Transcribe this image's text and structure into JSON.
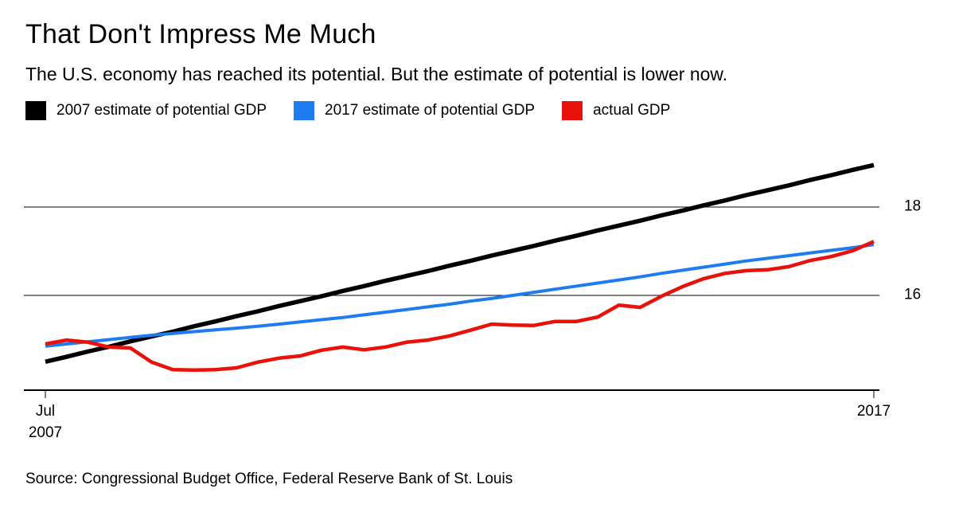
{
  "header": {
    "title": "That Don't Impress Me Much",
    "subtitle": "The U.S. economy has reached its potential. But the estimate of potential is lower now."
  },
  "legend": {
    "items": [
      {
        "label": "2007 estimate of potential GDP",
        "color": "#000000"
      },
      {
        "label": "2017 estimate of potential GDP",
        "color": "#1f7bf0"
      },
      {
        "label": "actual GDP",
        "color": "#e8120b"
      }
    ]
  },
  "chart_data": {
    "type": "line",
    "title": "That Don't Impress Me Much",
    "subtitle": "The U.S. economy has reached its potential. But the estimate of potential is lower now.",
    "x_unit": "quarterly, Jul 2007 through 2017",
    "y_axis": {
      "side": "right",
      "range": [
        13.85,
        19.35
      ],
      "gridlines": true,
      "ticks": [
        {
          "value": 18,
          "label": "18"
        },
        {
          "value": 16,
          "label": "16"
        }
      ]
    },
    "x_axis": {
      "left_tick": {
        "line1": "Jul",
        "line2": "2007"
      },
      "right_tick": {
        "label": "2017"
      }
    },
    "series": [
      {
        "name": "2007 estimate of potential GDP",
        "color": "#000000",
        "stroke_width": 5.5,
        "values": [
          14.5,
          14.61,
          14.73,
          14.84,
          14.96,
          15.07,
          15.18,
          15.3,
          15.41,
          15.53,
          15.64,
          15.76,
          15.87,
          15.98,
          16.1,
          16.21,
          16.33,
          16.44,
          16.55,
          16.67,
          16.78,
          16.9,
          17.01,
          17.12,
          17.24,
          17.35,
          17.47,
          17.58,
          17.69,
          17.81,
          17.92,
          18.04,
          18.15,
          18.27,
          18.38,
          18.49,
          18.61,
          18.72,
          18.84,
          18.95
        ]
      },
      {
        "name": "2017 estimate of potential GDP",
        "color": "#1f7bf0",
        "stroke_width": 4,
        "values": [
          14.85,
          14.9,
          14.95,
          15.0,
          15.05,
          15.1,
          15.14,
          15.18,
          15.22,
          15.26,
          15.3,
          15.35,
          15.4,
          15.45,
          15.5,
          15.56,
          15.62,
          15.68,
          15.74,
          15.8,
          15.87,
          15.93,
          16.0,
          16.07,
          16.14,
          16.21,
          16.28,
          16.35,
          16.42,
          16.5,
          16.57,
          16.64,
          16.71,
          16.78,
          16.84,
          16.9,
          16.96,
          17.02,
          17.08,
          17.15
        ]
      },
      {
        "name": "actual GDP",
        "color": "#e8120b",
        "stroke_width": 4.5,
        "values": [
          14.9,
          14.99,
          14.94,
          14.83,
          14.81,
          14.49,
          14.32,
          14.31,
          14.32,
          14.36,
          14.49,
          14.58,
          14.63,
          14.76,
          14.83,
          14.77,
          14.83,
          14.94,
          14.99,
          15.08,
          15.21,
          15.35,
          15.33,
          15.32,
          15.41,
          15.41,
          15.51,
          15.78,
          15.73,
          15.98,
          16.2,
          16.38,
          16.5,
          16.56,
          16.58,
          16.65,
          16.79,
          16.88,
          17.01,
          17.22
        ]
      }
    ]
  },
  "footer": {
    "source": "Source: Congressional Budget Office, Federal Reserve Bank of St. Louis"
  }
}
